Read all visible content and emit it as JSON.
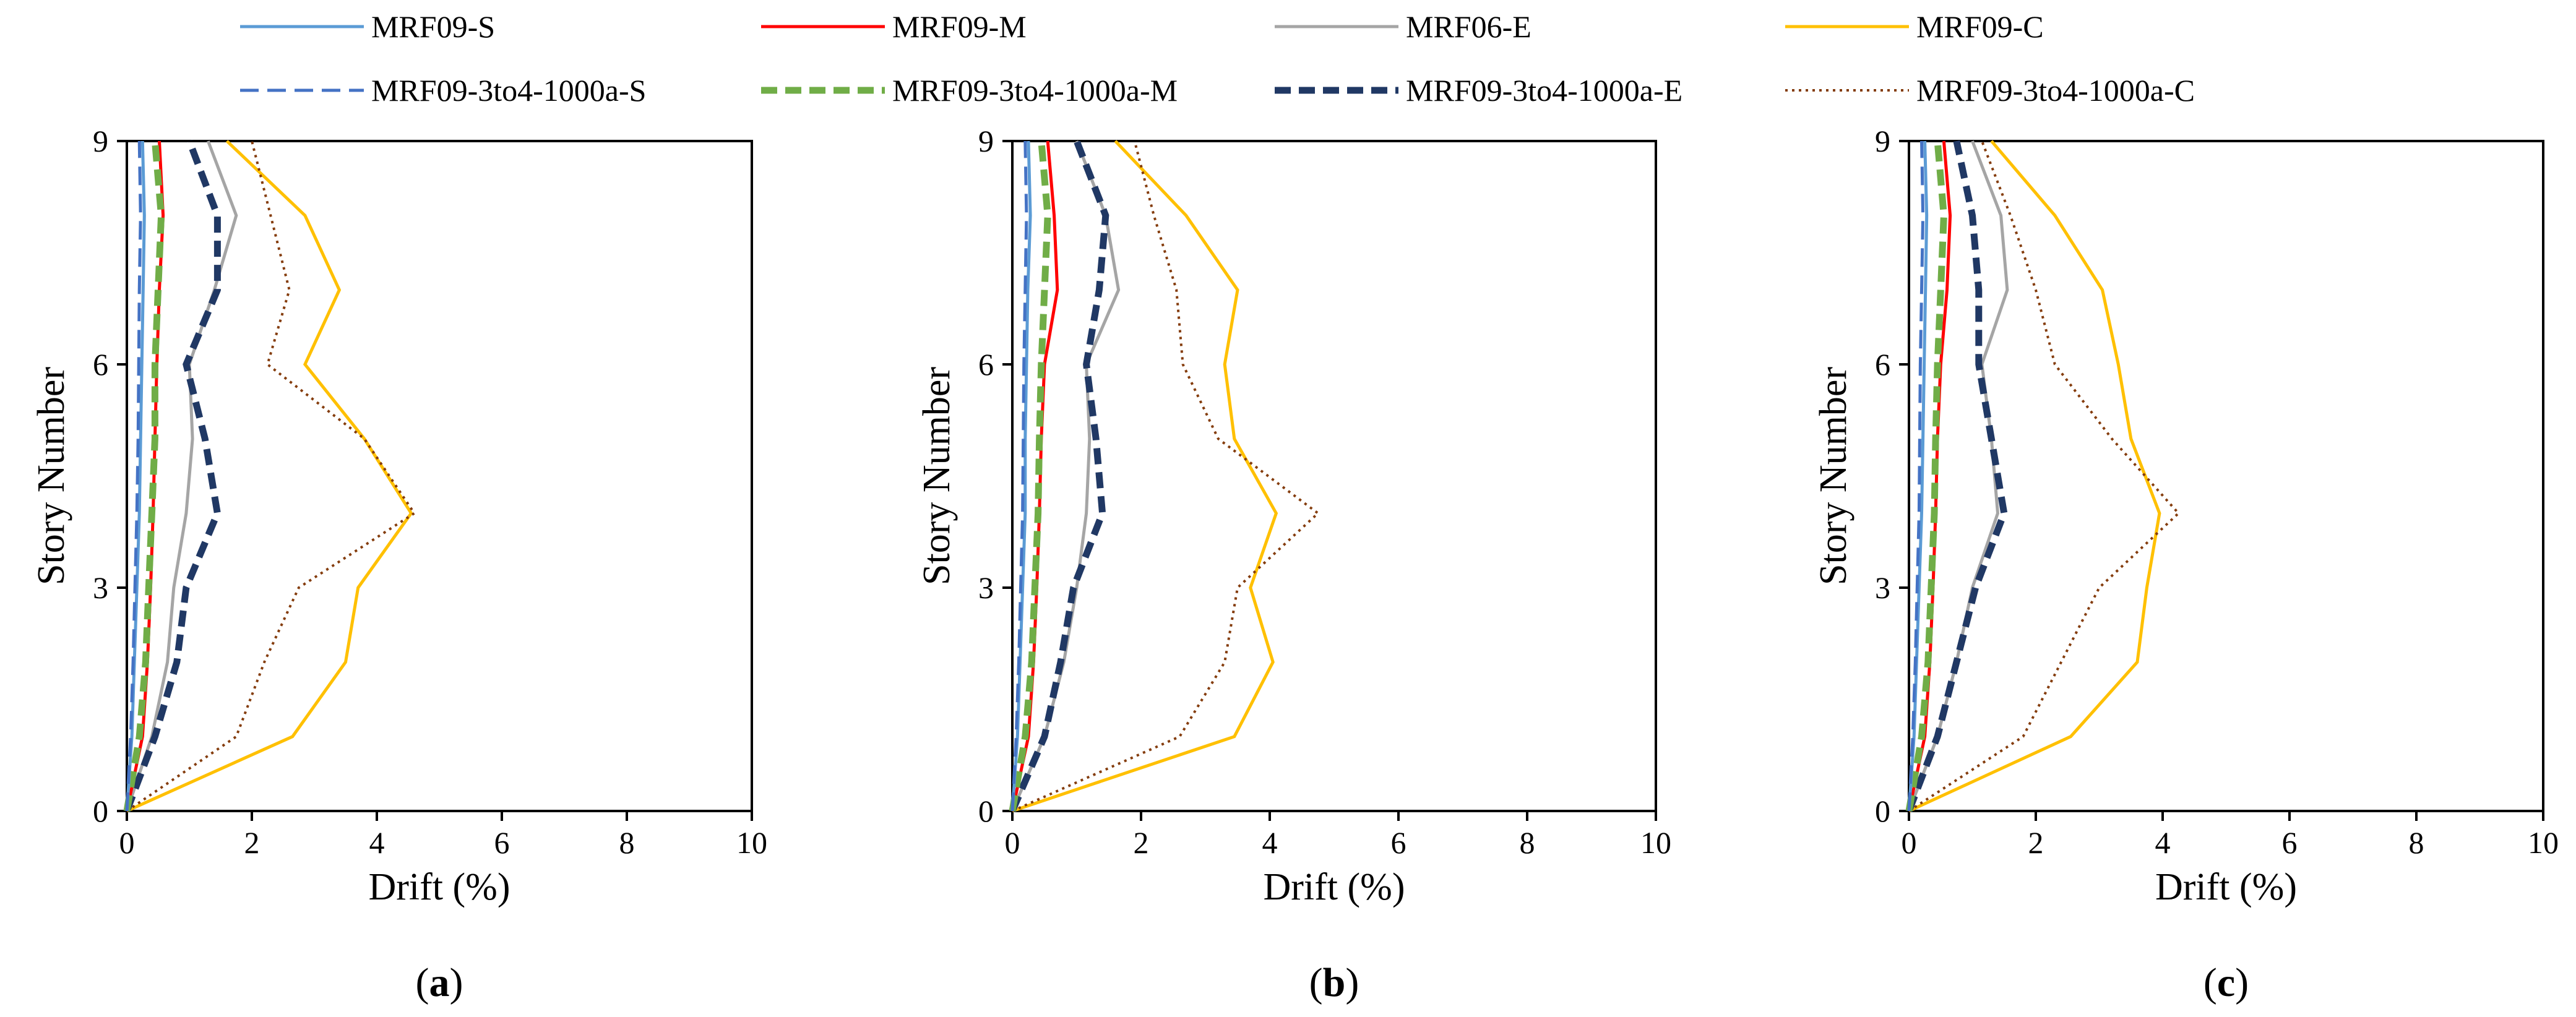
{
  "chart_data": {
    "type": "line",
    "legend": {
      "placement": "top",
      "entries": [
        {
          "key": "MRF09-S",
          "label": "MRF09-S",
          "color": "#5B9BD5",
          "style": "solid"
        },
        {
          "key": "MRF09-M",
          "label": "MRF09-M",
          "color": "#FF0000",
          "style": "solid"
        },
        {
          "key": "MRF06-E",
          "label": "MRF06-E",
          "color": "#A5A5A5",
          "style": "solid"
        },
        {
          "key": "MRF09-C",
          "label": "MRF09-C",
          "color": "#FFC000",
          "style": "solid"
        },
        {
          "key": "MRF09-3to4-1000a-S",
          "label": "MRF09-3to4-1000a-S",
          "color": "#4472C4",
          "style": "long-dash"
        },
        {
          "key": "MRF09-3to4-1000a-M",
          "label": "MRF09-3to4-1000a-M",
          "color": "#70AD47",
          "style": "heavy-dash"
        },
        {
          "key": "MRF09-3to4-1000a-E",
          "label": "MRF09-3to4-1000a-E",
          "color": "#203864",
          "style": "heavy-dash"
        },
        {
          "key": "MRF09-3to4-1000a-C",
          "label": "MRF09-3to4-1000a-C",
          "color": "#843C0C",
          "style": "dotted"
        }
      ]
    },
    "panels": [
      {
        "label": "(a)",
        "xlabel": "Drift (%)",
        "ylabel": "Story Number",
        "xlim": [
          0,
          10
        ],
        "ylim": [
          0,
          9
        ],
        "xticks": [
          "0",
          "2",
          "4",
          "6",
          "8",
          "10"
        ],
        "yticks": [
          "0",
          "3",
          "6",
          "9"
        ],
        "story": [
          0,
          1,
          2,
          3,
          4,
          5,
          6,
          7,
          8,
          9
        ],
        "series": [
          {
            "key": "MRF09-S",
            "values": [
              0,
              0.08,
              0.12,
              0.16,
              0.2,
              0.22,
              0.24,
              0.26,
              0.28,
              0.25
            ]
          },
          {
            "key": "MRF09-M",
            "values": [
              0,
              0.25,
              0.33,
              0.38,
              0.42,
              0.45,
              0.48,
              0.52,
              0.58,
              0.52
            ]
          },
          {
            "key": "MRF06-E",
            "values": [
              0,
              0.4,
              0.65,
              0.75,
              0.95,
              1.05,
              1.0,
              1.4,
              1.75,
              1.3
            ]
          },
          {
            "key": "MRF09-C",
            "values": [
              0,
              2.65,
              3.5,
              3.7,
              4.55,
              3.8,
              2.85,
              3.4,
              2.85,
              1.6
            ]
          },
          {
            "key": "MRF09-3to4-1000a-S",
            "values": [
              0,
              0.06,
              0.1,
              0.13,
              0.16,
              0.18,
              0.19,
              0.2,
              0.22,
              0.2
            ]
          },
          {
            "key": "MRF09-3to4-1000a-M",
            "values": [
              0,
              0.2,
              0.3,
              0.35,
              0.4,
              0.45,
              0.45,
              0.5,
              0.55,
              0.45
            ]
          },
          {
            "key": "MRF09-3to4-1000a-E",
            "values": [
              0,
              0.45,
              0.8,
              0.95,
              1.45,
              1.25,
              0.95,
              1.45,
              1.45,
              1.0
            ]
          },
          {
            "key": "MRF09-3to4-1000a-C",
            "values": [
              0,
              1.75,
              2.2,
              2.75,
              4.6,
              3.8,
              2.25,
              2.6,
              2.3,
              2.0
            ]
          }
        ]
      },
      {
        "label": "(b)",
        "xlabel": "Drift (%)",
        "ylabel": "Story Number",
        "xlim": [
          0,
          10
        ],
        "ylim": [
          0,
          9
        ],
        "xticks": [
          "0",
          "2",
          "4",
          "6",
          "8",
          "10"
        ],
        "yticks": [
          "0",
          "3",
          "6",
          "9"
        ],
        "story": [
          0,
          1,
          2,
          3,
          4,
          5,
          6,
          7,
          8,
          9
        ],
        "series": [
          {
            "key": "MRF09-S",
            "values": [
              0,
              0.08,
              0.12,
              0.16,
              0.2,
              0.2,
              0.22,
              0.24,
              0.28,
              0.25
            ]
          },
          {
            "key": "MRF09-M",
            "values": [
              0,
              0.25,
              0.33,
              0.38,
              0.42,
              0.45,
              0.5,
              0.7,
              0.65,
              0.55
            ]
          },
          {
            "key": "MRF06-E",
            "values": [
              0,
              0.5,
              0.8,
              1.0,
              1.15,
              1.2,
              1.15,
              1.65,
              1.45,
              1.0
            ]
          },
          {
            "key": "MRF09-C",
            "values": [
              0,
              3.45,
              4.05,
              3.7,
              4.1,
              3.45,
              3.3,
              3.5,
              2.7,
              1.6
            ]
          },
          {
            "key": "MRF09-3to4-1000a-S",
            "values": [
              0,
              0.06,
              0.1,
              0.13,
              0.16,
              0.17,
              0.18,
              0.2,
              0.22,
              0.2
            ]
          },
          {
            "key": "MRF09-3to4-1000a-M",
            "values": [
              0,
              0.2,
              0.3,
              0.35,
              0.4,
              0.42,
              0.45,
              0.5,
              0.55,
              0.45
            ]
          },
          {
            "key": "MRF09-3to4-1000a-E",
            "values": [
              0,
              0.5,
              0.75,
              0.95,
              1.4,
              1.3,
              1.15,
              1.35,
              1.45,
              1.0
            ]
          },
          {
            "key": "MRF09-3to4-1000a-C",
            "values": [
              0,
              2.6,
              3.3,
              3.5,
              4.75,
              3.2,
              2.65,
              2.55,
              2.2,
              1.9
            ]
          }
        ]
      },
      {
        "label": "(c)",
        "xlabel": "Drift (%)",
        "ylabel": "Story Number",
        "xlim": [
          0,
          10
        ],
        "ylim": [
          0,
          9
        ],
        "xticks": [
          "0",
          "2",
          "4",
          "6",
          "8",
          "10"
        ],
        "yticks": [
          "0",
          "3",
          "6",
          "9"
        ],
        "story": [
          0,
          1,
          2,
          3,
          4,
          5,
          6,
          7,
          8,
          9
        ],
        "series": [
          {
            "key": "MRF09-S",
            "values": [
              0,
              0.08,
              0.12,
              0.16,
              0.2,
              0.22,
              0.24,
              0.26,
              0.28,
              0.25
            ]
          },
          {
            "key": "MRF09-M",
            "values": [
              0,
              0.25,
              0.33,
              0.38,
              0.42,
              0.45,
              0.5,
              0.6,
              0.65,
              0.55
            ]
          },
          {
            "key": "MRF06-E",
            "values": [
              0,
              0.45,
              0.75,
              1.0,
              1.4,
              1.3,
              1.15,
              1.55,
              1.45,
              1.0
            ]
          },
          {
            "key": "MRF09-C",
            "values": [
              0,
              2.55,
              3.6,
              3.75,
              3.95,
              3.5,
              3.3,
              3.05,
              2.3,
              1.3
            ]
          },
          {
            "key": "MRF09-3to4-1000a-S",
            "values": [
              0,
              0.06,
              0.1,
              0.13,
              0.16,
              0.17,
              0.18,
              0.2,
              0.22,
              0.2
            ]
          },
          {
            "key": "MRF09-3to4-1000a-M",
            "values": [
              0,
              0.2,
              0.3,
              0.35,
              0.4,
              0.42,
              0.45,
              0.5,
              0.55,
              0.45
            ]
          },
          {
            "key": "MRF09-3to4-1000a-E",
            "values": [
              0,
              0.45,
              0.75,
              1.05,
              1.5,
              1.3,
              1.1,
              1.1,
              1.0,
              0.75
            ]
          },
          {
            "key": "MRF09-3to4-1000a-C",
            "values": [
              0,
              1.8,
              2.4,
              3.0,
              4.25,
              3.2,
              2.3,
              2.0,
              1.6,
              1.15
            ]
          }
        ]
      }
    ]
  }
}
